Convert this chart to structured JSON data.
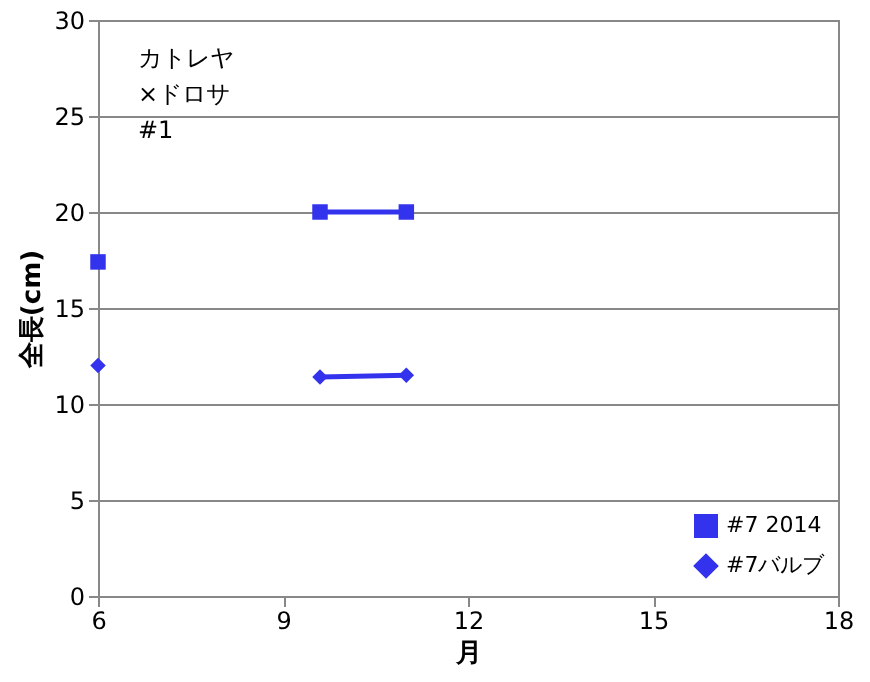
{
  "chart_data": {
    "type": "line",
    "xlabel": "月",
    "ylabel": "全長(cm)",
    "annotations": [
      "カトレヤ\n×ドロサ\n#1"
    ],
    "xlim": [
      6,
      18
    ],
    "xticks": [
      6,
      9,
      12,
      15,
      18
    ],
    "ylim": [
      0,
      30
    ],
    "yticks": [
      0,
      5,
      10,
      15,
      20,
      25,
      30
    ],
    "grid": "y",
    "legend": "bottom right",
    "line_style": "solid",
    "series": [
      {
        "name": "#7 2014",
        "color": "#3333ee",
        "marker": "square",
        "x": [
          6,
          7.5,
          9.6,
          11
        ],
        "values": [
          17.4,
          null,
          20,
          20
        ]
      },
      {
        "name": "#7バルブ",
        "color": "#3333ee",
        "marker": "diamond",
        "x": [
          6,
          7.5,
          9.6,
          11
        ],
        "values": [
          12,
          null,
          11.4,
          11.5
        ]
      }
    ]
  }
}
